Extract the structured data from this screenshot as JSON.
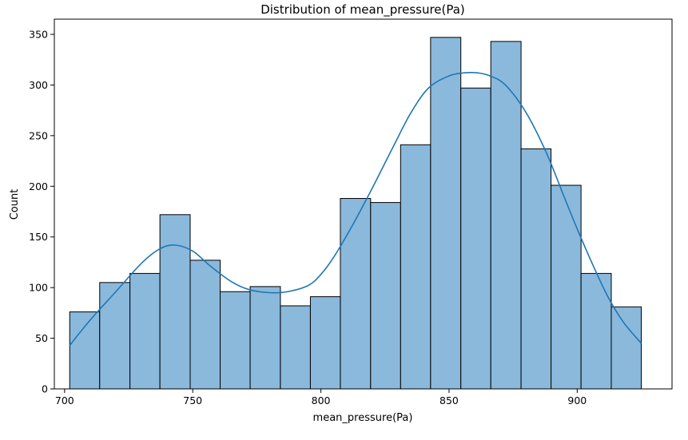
{
  "chart_data": {
    "type": "bar",
    "title": "Distribution of mean_pressure(Pa)",
    "xlabel": "mean_pressure(Pa)",
    "ylabel": "Count",
    "xlim": [
      696,
      937
    ],
    "ylim": [
      0,
      365
    ],
    "x_ticks": [
      700,
      750,
      800,
      850,
      900
    ],
    "y_ticks": [
      0,
      50,
      100,
      150,
      200,
      250,
      300,
      350
    ],
    "grid": false,
    "bar_color": "#8ab9dc",
    "bar_edge_color": "#000000",
    "kde_color": "#1f77b4",
    "bins": [
      {
        "x0": 702.0,
        "x1": 713.7,
        "count": 76
      },
      {
        "x0": 713.7,
        "x1": 725.5,
        "count": 105
      },
      {
        "x0": 725.5,
        "x1": 737.2,
        "count": 114
      },
      {
        "x0": 737.2,
        "x1": 749.0,
        "count": 172
      },
      {
        "x0": 749.0,
        "x1": 760.7,
        "count": 127
      },
      {
        "x0": 760.7,
        "x1": 772.4,
        "count": 96
      },
      {
        "x0": 772.4,
        "x1": 784.2,
        "count": 101
      },
      {
        "x0": 784.2,
        "x1": 795.9,
        "count": 82
      },
      {
        "x0": 795.9,
        "x1": 807.6,
        "count": 91
      },
      {
        "x0": 807.6,
        "x1": 819.4,
        "count": 188
      },
      {
        "x0": 819.4,
        "x1": 831.1,
        "count": 184
      },
      {
        "x0": 831.1,
        "x1": 842.8,
        "count": 241
      },
      {
        "x0": 842.8,
        "x1": 854.6,
        "count": 347
      },
      {
        "x0": 854.6,
        "x1": 866.3,
        "count": 297
      },
      {
        "x0": 866.3,
        "x1": 878.1,
        "count": 343
      },
      {
        "x0": 878.1,
        "x1": 889.8,
        "count": 237
      },
      {
        "x0": 889.8,
        "x1": 901.5,
        "count": 201
      },
      {
        "x0": 901.5,
        "x1": 913.3,
        "count": 114
      },
      {
        "x0": 913.3,
        "x1": 925.0,
        "count": 81
      }
    ],
    "kde": {
      "x": [
        702,
        710,
        720,
        730,
        737,
        743,
        750,
        757,
        765,
        772,
        780,
        787,
        795,
        800,
        805,
        812,
        820,
        828,
        835,
        842,
        850,
        856,
        861,
        866,
        872,
        880,
        888,
        895,
        900,
        906,
        912,
        918,
        925
      ],
      "y": [
        43,
        68,
        96,
        124,
        138,
        142,
        136,
        121,
        106,
        98,
        95,
        96,
        102,
        113,
        130,
        160,
        198,
        238,
        272,
        297,
        309,
        312,
        312,
        309,
        300,
        273,
        233,
        189,
        158,
        123,
        91,
        66,
        45
      ]
    }
  }
}
